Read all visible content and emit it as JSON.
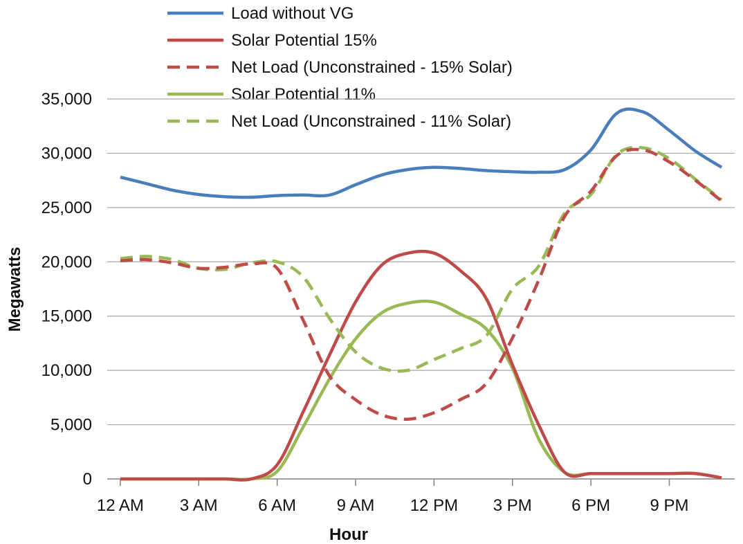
{
  "chart_data": {
    "type": "line",
    "title": "",
    "xlabel": "Hour",
    "ylabel": "Megawatts",
    "x": [
      0,
      1,
      2,
      3,
      4,
      5,
      6,
      7,
      8,
      9,
      10,
      11,
      12,
      13,
      14,
      15,
      16,
      17,
      18,
      19,
      20,
      21,
      22,
      23
    ],
    "x_ticks": [
      {
        "x": 0,
        "label": "12 AM"
      },
      {
        "x": 3,
        "label": "3 AM"
      },
      {
        "x": 6,
        "label": "6 AM"
      },
      {
        "x": 9,
        "label": "9 AM"
      },
      {
        "x": 12,
        "label": "12 PM"
      },
      {
        "x": 15,
        "label": "3 PM"
      },
      {
        "x": 18,
        "label": "6 PM"
      },
      {
        "x": 21,
        "label": "9 PM"
      }
    ],
    "y_ticks": [
      {
        "y": 0,
        "label": "0"
      },
      {
        "y": 5000,
        "label": "5,000"
      },
      {
        "y": 10000,
        "label": "10,000"
      },
      {
        "y": 15000,
        "label": "15,000"
      },
      {
        "y": 20000,
        "label": "20,000"
      },
      {
        "y": 25000,
        "label": "25,000"
      },
      {
        "y": 30000,
        "label": "30,000"
      },
      {
        "y": 35000,
        "label": "35,000"
      }
    ],
    "xlim": [
      -0.5,
      23.5
    ],
    "ylim": [
      0,
      35000
    ],
    "grid": "horizontal",
    "legend_position": "top",
    "series": [
      {
        "name": "Load without VG",
        "color": "#4A7EBB",
        "style": "solid",
        "values": [
          27800,
          27200,
          26600,
          26200,
          26000,
          25950,
          26100,
          26150,
          26150,
          27100,
          28000,
          28500,
          28700,
          28600,
          28400,
          28300,
          28250,
          28500,
          30300,
          33700,
          33800,
          32100,
          30200,
          28700
        ]
      },
      {
        "name": "Solar Potential 15%",
        "color": "#BE4B48",
        "style": "solid",
        "values": [
          0,
          0,
          0,
          0,
          0,
          0,
          1300,
          6200,
          11400,
          16300,
          19700,
          20800,
          20800,
          19200,
          16600,
          10500,
          5000,
          600,
          500,
          500,
          500,
          500,
          500,
          100
        ]
      },
      {
        "name": "Net Load (Unconstrained - 15% Solar)",
        "color": "#BE4B48",
        "style": "dashed",
        "values": [
          20100,
          20200,
          19900,
          19400,
          19500,
          19800,
          19400,
          14600,
          9500,
          7300,
          5900,
          5500,
          6100,
          7300,
          8800,
          13000,
          18300,
          24200,
          26500,
          29800,
          30300,
          29200,
          27500,
          25600
        ]
      },
      {
        "name": "Solar Potential 11%",
        "color": "#98B954",
        "style": "solid",
        "values": [
          0,
          0,
          0,
          0,
          0,
          0,
          700,
          4800,
          9200,
          12900,
          15300,
          16200,
          16300,
          15200,
          13800,
          10200,
          3700,
          600,
          500,
          500,
          500,
          500,
          500,
          100
        ]
      },
      {
        "name": "Net Load (Unconstrained - 11% Solar)",
        "color": "#98B954",
        "style": "dashed",
        "values": [
          20300,
          20500,
          20200,
          19400,
          19300,
          19900,
          20000,
          18600,
          14800,
          11700,
          10200,
          10000,
          11000,
          12000,
          13200,
          17500,
          19600,
          24500,
          26200,
          29900,
          30500,
          29500,
          27600,
          25700
        ]
      }
    ]
  }
}
